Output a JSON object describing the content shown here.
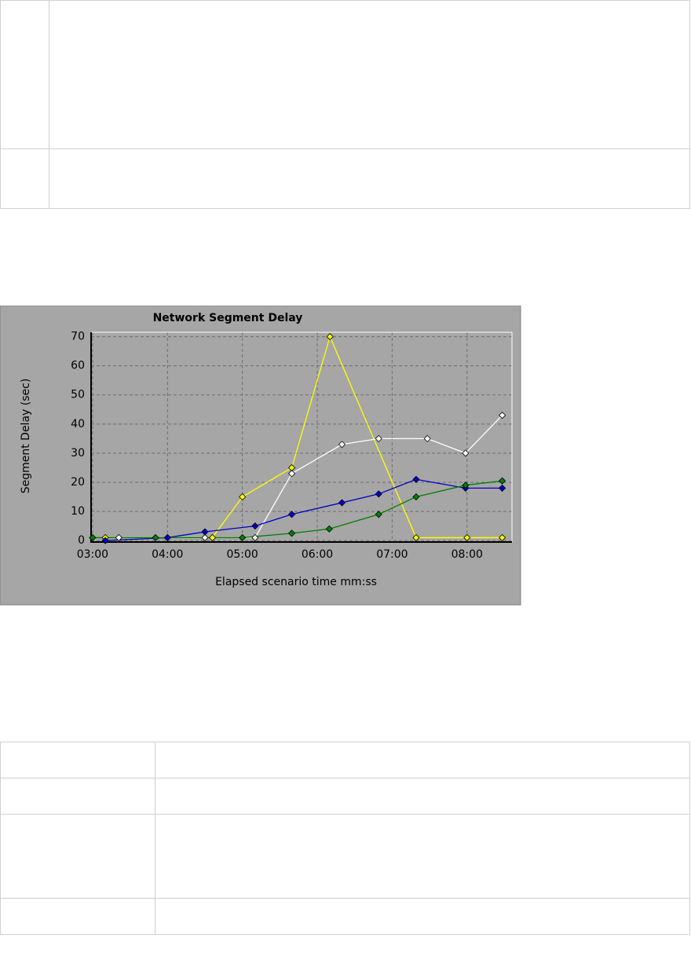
{
  "chart_data": {
    "type": "line",
    "title": "Network Segment Delay",
    "x_label": "Elapsed scenario time mm:ss",
    "y_label": "Segment Delay (sec)",
    "xlim": [
      2.98,
      8.6
    ],
    "ylim": [
      -0.5,
      71.5
    ],
    "xticks": [
      {
        "value": 3,
        "label": "03:00"
      },
      {
        "value": 4,
        "label": "04:00"
      },
      {
        "value": 5,
        "label": "05:00"
      },
      {
        "value": 6,
        "label": "06:00"
      },
      {
        "value": 7,
        "label": "07:00"
      },
      {
        "value": 8,
        "label": "08:00"
      }
    ],
    "yticks": [
      0,
      10,
      20,
      30,
      40,
      50,
      60,
      70
    ],
    "grid": true,
    "series": [
      {
        "color": "#ffff00",
        "x": [
          3.17,
          4.6,
          5.0,
          5.66,
          6.17,
          7.32,
          8.0,
          8.47
        ],
        "values": [
          1,
          1,
          15,
          25,
          70,
          1,
          1,
          1
        ]
      },
      {
        "color": "#ffffff",
        "x": [
          3.35,
          4.0,
          4.5,
          5.17,
          5.66,
          6.33,
          6.82,
          7.47,
          7.98,
          8.47
        ],
        "values": [
          1,
          1,
          1,
          1,
          23,
          33,
          35,
          35,
          30,
          43
        ]
      },
      {
        "color": "#0000c8",
        "x": [
          3.17,
          4.0,
          4.5,
          5.17,
          5.66,
          6.33,
          6.82,
          7.32,
          7.98,
          8.47
        ],
        "values": [
          0,
          1,
          3,
          5,
          9,
          13,
          16,
          21,
          18,
          18
        ]
      },
      {
        "color": "#008000",
        "x": [
          3.0,
          3.84,
          5.0,
          5.66,
          6.16,
          6.82,
          7.32,
          7.98,
          8.47
        ],
        "values": [
          1,
          1,
          1,
          2.5,
          4,
          9,
          15,
          19,
          20.5
        ]
      }
    ]
  }
}
